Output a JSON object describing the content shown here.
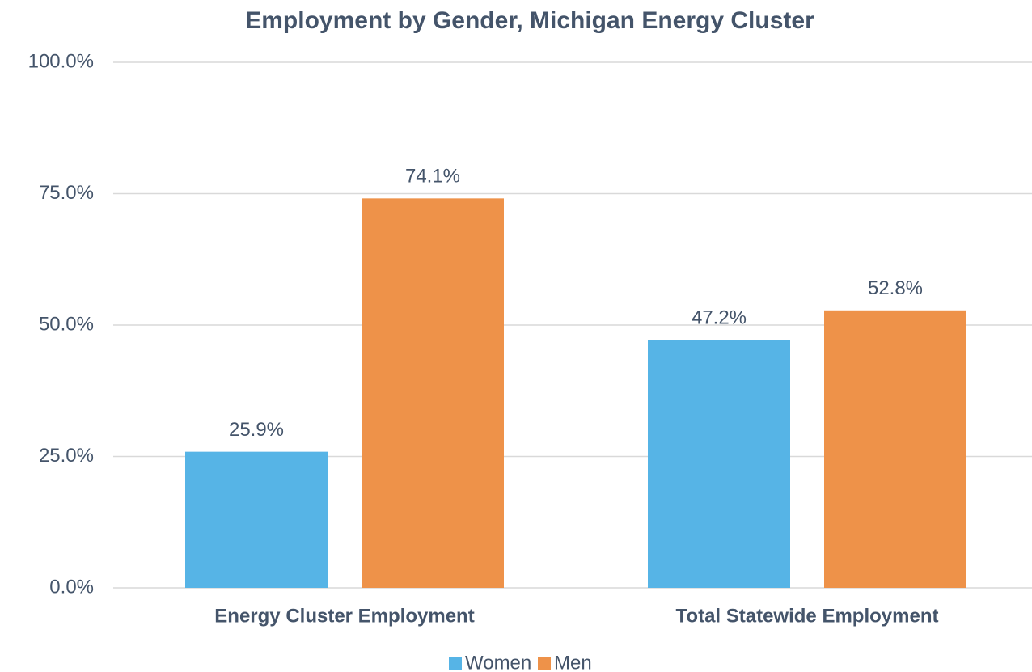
{
  "chart_data": {
    "type": "bar",
    "title": "Employment by Gender, Michigan Energy Cluster",
    "categories": [
      "Energy Cluster Employment",
      "Total Statewide Employment"
    ],
    "series": [
      {
        "name": "Women",
        "color": "#56b4e6",
        "values": [
          25.9,
          47.2
        ],
        "value_labels": [
          "25.9%",
          "47.2%"
        ]
      },
      {
        "name": "Men",
        "color": "#ee9249",
        "values": [
          74.1,
          52.8
        ],
        "value_labels": [
          "74.1%",
          "52.8%"
        ]
      }
    ],
    "ylim": [
      0,
      100
    ],
    "yticks": [
      {
        "value": 0,
        "label": "0.0%"
      },
      {
        "value": 25,
        "label": "25.0%"
      },
      {
        "value": 50,
        "label": "50.0%"
      },
      {
        "value": 75,
        "label": "75.0%"
      },
      {
        "value": 100,
        "label": "100.0%"
      }
    ],
    "grid": true,
    "legend": "bottom"
  }
}
